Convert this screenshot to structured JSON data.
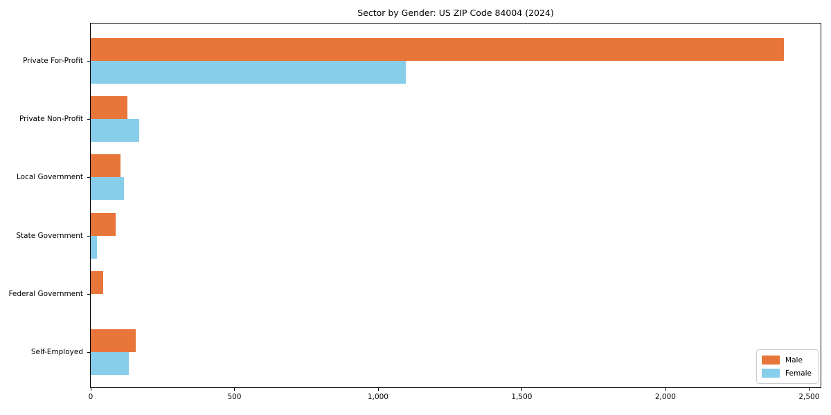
{
  "chart_data": {
    "type": "bar",
    "orientation": "horizontal",
    "title": "Sector by Gender: US ZIP Code 84004 (2024)",
    "categories": [
      "Private For-Profit",
      "Private Non-Profit",
      "Local Government",
      "State Government",
      "Federal Government",
      "Self-Employed"
    ],
    "series": [
      {
        "name": "Male",
        "color": "#e8763b",
        "values": [
          2413,
          128,
          103,
          87,
          43,
          156
        ]
      },
      {
        "name": "Female",
        "color": "#87ceeb",
        "values": [
          1097,
          168,
          115,
          22,
          0,
          132
        ]
      }
    ],
    "xlabel": "",
    "ylabel": "",
    "xlim": [
      0,
      2540
    ],
    "xticks": [
      {
        "value": 0,
        "label": "0"
      },
      {
        "value": 500,
        "label": "500"
      },
      {
        "value": 1000,
        "label": "1,000"
      },
      {
        "value": 1500,
        "label": "1,500"
      },
      {
        "value": 2000,
        "label": "2,000"
      },
      {
        "value": 2500,
        "label": "2,500"
      }
    ],
    "grid": false,
    "frame": true,
    "legend": {
      "position": "lower right",
      "items": [
        {
          "label": "Male",
          "color": "#e8763b"
        },
        {
          "label": "Female",
          "color": "#87ceeb"
        }
      ]
    }
  }
}
